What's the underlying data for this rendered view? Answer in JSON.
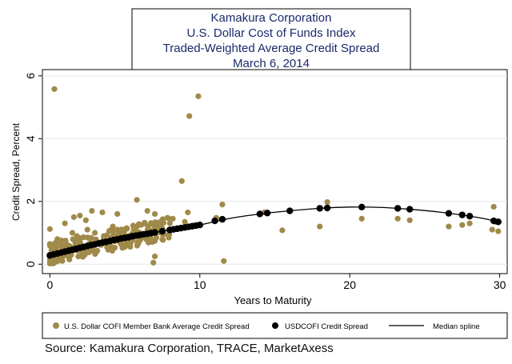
{
  "chart_data": {
    "type": "scatter",
    "title": [
      "Kamakura Corporation",
      "U.S. Dollar Cost of Funds Index",
      "Traded-Weighted Average Credit Spread",
      "March 6, 2014"
    ],
    "xlabel": "Years to Maturity",
    "ylabel": "Credit Spread, Percent",
    "xlim": [
      -0.5,
      30.5
    ],
    "ylim": [
      -0.3,
      6.2
    ],
    "x_ticks": [
      0,
      10,
      20,
      30
    ],
    "x_tick_labels": [
      "0",
      "10",
      "20",
      "30"
    ],
    "y_ticks": [
      0,
      2,
      4,
      6
    ],
    "y_tick_labels": [
      "0",
      "2",
      "4",
      "6"
    ],
    "grid": true,
    "legend_position": "bottom",
    "series": [
      {
        "name": "U.S. Dollar COFI Member Bank Average Credit Spread",
        "type": "scatter",
        "color": "#a08a4a",
        "points": [
          [
            0.3,
            5.58
          ],
          [
            9.9,
            5.35
          ],
          [
            9.3,
            4.72
          ],
          [
            8.8,
            2.65
          ],
          [
            5.8,
            2.05
          ],
          [
            18.5,
            1.98
          ],
          [
            11.5,
            1.9
          ],
          [
            29.6,
            1.83
          ],
          [
            2.8,
            1.7
          ],
          [
            3.5,
            1.65
          ],
          [
            6.5,
            1.7
          ],
          [
            7.0,
            1.6
          ],
          [
            9.2,
            1.65
          ],
          [
            2.0,
            1.55
          ],
          [
            4.5,
            1.6
          ],
          [
            8.2,
            1.45
          ],
          [
            11.1,
            1.48
          ],
          [
            14.3,
            1.65
          ],
          [
            18.0,
            1.2
          ],
          [
            15.5,
            1.08
          ],
          [
            23.2,
            1.45
          ],
          [
            24.0,
            1.4
          ],
          [
            26.6,
            1.2
          ],
          [
            27.5,
            1.25
          ],
          [
            28.0,
            1.3
          ],
          [
            29.5,
            1.1
          ],
          [
            29.9,
            1.05
          ],
          [
            29.7,
            1.35
          ],
          [
            20.8,
            1.45
          ],
          [
            0.0,
            1.12
          ],
          [
            0.5,
            0.8
          ],
          [
            1.0,
            1.3
          ],
          [
            1.2,
            0.5
          ],
          [
            1.5,
            1.0
          ],
          [
            1.8,
            0.9
          ],
          [
            2.2,
            0.3
          ],
          [
            2.5,
            1.1
          ],
          [
            2.8,
            0.5
          ],
          [
            3.0,
            1.0
          ],
          [
            3.2,
            0.7
          ],
          [
            3.6,
            0.9
          ],
          [
            4.0,
            0.6
          ],
          [
            4.2,
            1.2
          ],
          [
            4.8,
            1.0
          ],
          [
            5.0,
            0.55
          ],
          [
            5.3,
            0.8
          ],
          [
            5.6,
            1.1
          ],
          [
            6.0,
            0.9
          ],
          [
            6.3,
            1.3
          ],
          [
            6.8,
            1.0
          ],
          [
            7.3,
            1.2
          ],
          [
            7.6,
            0.95
          ],
          [
            8.0,
            1.3
          ],
          [
            8.5,
            1.15
          ],
          [
            9.0,
            1.35
          ],
          [
            9.5,
            1.2
          ],
          [
            7.0,
            0.25
          ],
          [
            6.9,
            0.05
          ],
          [
            11.6,
            0.1
          ],
          [
            0.6,
            0.2
          ],
          [
            1.3,
            0.15
          ],
          [
            0.8,
            0.6
          ],
          [
            1.6,
            1.5
          ],
          [
            2.4,
            1.4
          ]
        ],
        "cloud": {
          "x_range": [
            0,
            8
          ],
          "y_center_slope": 0.1,
          "y_center_intercept": 0.35,
          "spread": 0.35,
          "count": 220
        }
      },
      {
        "name": "USDCOFI Credit Spread",
        "type": "scatter",
        "color": "#000000",
        "x": [
          0,
          0.25,
          0.5,
          0.75,
          1,
          1.25,
          1.5,
          1.75,
          2,
          2.25,
          2.5,
          2.75,
          3,
          3.25,
          3.5,
          3.75,
          4,
          4.25,
          4.5,
          4.75,
          5,
          5.25,
          5.5,
          5.75,
          6,
          6.25,
          6.5,
          6.75,
          7,
          7.5,
          8,
          8.25,
          8.5,
          8.75,
          9,
          9.25,
          9.5,
          9.75,
          10,
          11,
          11.5,
          14,
          14.5,
          16,
          18,
          18.5,
          20.8,
          23.2,
          24,
          26.6,
          27.5,
          28,
          29.6,
          29.9
        ],
        "values": [
          0.28,
          0.31,
          0.34,
          0.37,
          0.4,
          0.43,
          0.46,
          0.49,
          0.52,
          0.55,
          0.58,
          0.61,
          0.63,
          0.66,
          0.69,
          0.71,
          0.74,
          0.77,
          0.79,
          0.82,
          0.84,
          0.86,
          0.89,
          0.91,
          0.93,
          0.95,
          0.97,
          0.99,
          1.01,
          1.05,
          1.09,
          1.11,
          1.13,
          1.15,
          1.17,
          1.19,
          1.21,
          1.23,
          1.25,
          1.38,
          1.43,
          1.6,
          1.63,
          1.7,
          1.78,
          1.79,
          1.82,
          1.78,
          1.75,
          1.62,
          1.57,
          1.53,
          1.38,
          1.35
        ]
      },
      {
        "name": "Median spline",
        "type": "line",
        "color": "#000000",
        "x": [
          0,
          2,
          4,
          6,
          8,
          10,
          12,
          14,
          16,
          18,
          20,
          22,
          24,
          26,
          28,
          29,
          30
        ],
        "values": [
          0.28,
          0.52,
          0.74,
          0.93,
          1.09,
          1.25,
          1.46,
          1.6,
          1.7,
          1.78,
          1.82,
          1.81,
          1.75,
          1.66,
          1.53,
          1.45,
          1.33
        ]
      }
    ],
    "legend": [
      {
        "label": "U.S. Dollar COFI Member Bank Average Credit Spread",
        "marker": "circle",
        "color": "#a08a4a"
      },
      {
        "label": "USDCOFI Credit Spread",
        "marker": "circle",
        "color": "#000000"
      },
      {
        "label": "Median spline",
        "marker": "line",
        "color": "#000000"
      }
    ]
  },
  "source_note": "Source: Kamakura Corporation, TRACE, MarketAxess"
}
